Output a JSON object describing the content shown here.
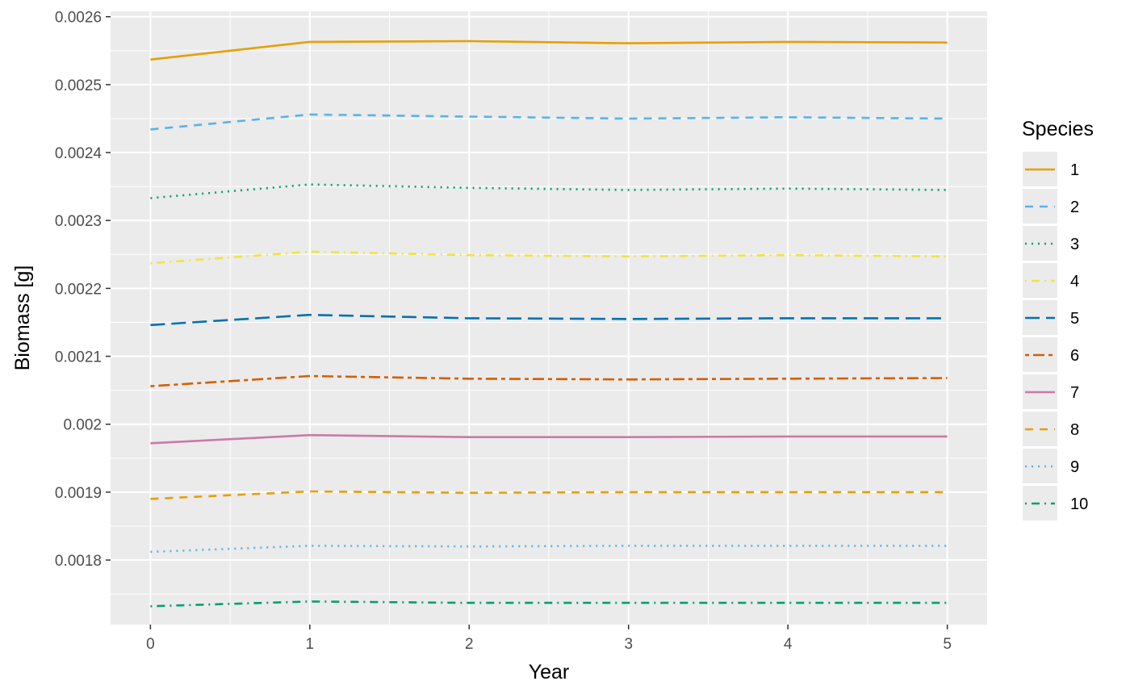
{
  "chart_data": {
    "type": "line",
    "title": "",
    "xlabel": "Year",
    "ylabel": "Biomass [g]",
    "legend_title": "Species",
    "legend_position": "right",
    "grid": true,
    "background_color": "#ebebeb",
    "gridline_color": "#ffffff",
    "xlim": [
      -0.25,
      5.25
    ],
    "ylim": [
      0.001705,
      0.002608
    ],
    "x": [
      0,
      1,
      2,
      3,
      4,
      5
    ],
    "x_ticks": [
      0,
      1,
      2,
      3,
      4,
      5
    ],
    "x_tick_labels": [
      "0",
      "1",
      "2",
      "3",
      "4",
      "5"
    ],
    "y_ticks": [
      0.0018,
      0.0019,
      0.002,
      0.0021,
      0.0022,
      0.0023,
      0.0024,
      0.0025,
      0.0026
    ],
    "y_tick_labels": [
      "0.0018",
      "0.0019",
      "0.002",
      "0.0021",
      "0.0022",
      "0.0023",
      "0.0024",
      "0.0025",
      "0.0026"
    ],
    "series": [
      {
        "name": "1",
        "color": "#E69F00",
        "linetype": "solid",
        "values": [
          0.002537,
          0.002563,
          0.002564,
          0.002561,
          0.002563,
          0.002562
        ]
      },
      {
        "name": "2",
        "color": "#56B4E9",
        "linetype": "dashed",
        "values": [
          0.002434,
          0.002456,
          0.002453,
          0.00245,
          0.002452,
          0.00245
        ]
      },
      {
        "name": "3",
        "color": "#009E73",
        "linetype": "dotted",
        "values": [
          0.002333,
          0.002353,
          0.002348,
          0.002345,
          0.002347,
          0.002345
        ]
      },
      {
        "name": "4",
        "color": "#F0E442",
        "linetype": "dotdash",
        "values": [
          0.002237,
          0.002254,
          0.002249,
          0.002247,
          0.002249,
          0.002247
        ]
      },
      {
        "name": "5",
        "color": "#0072B2",
        "linetype": "longdash",
        "values": [
          0.002146,
          0.002161,
          0.002156,
          0.002155,
          0.002156,
          0.002156
        ]
      },
      {
        "name": "6",
        "color": "#D55E00",
        "linetype": "twodash",
        "values": [
          0.002056,
          0.002071,
          0.002067,
          0.002066,
          0.002067,
          0.002068
        ]
      },
      {
        "name": "7",
        "color": "#CC79A7",
        "linetype": "solid",
        "values": [
          0.001972,
          0.001984,
          0.001981,
          0.001981,
          0.001982,
          0.001982
        ]
      },
      {
        "name": "8",
        "color": "#E69F00",
        "linetype": "dashed",
        "values": [
          0.00189,
          0.001901,
          0.001899,
          0.0019,
          0.0019,
          0.0019
        ]
      },
      {
        "name": "9",
        "color": "#56B4E9",
        "linetype": "dotted",
        "values": [
          0.001812,
          0.001821,
          0.00182,
          0.001821,
          0.001821,
          0.001821
        ]
      },
      {
        "name": "10",
        "color": "#009E73",
        "linetype": "dotdash",
        "values": [
          0.001732,
          0.001739,
          0.001737,
          0.001737,
          0.001737,
          0.001737
        ]
      }
    ]
  }
}
